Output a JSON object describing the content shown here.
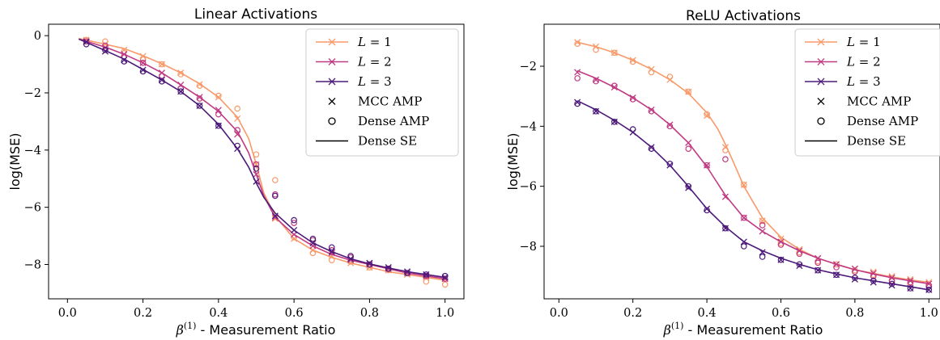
{
  "colors": {
    "L1": "#f89a6a",
    "L2": "#c03a83",
    "L3": "#4c1a7a",
    "legend_frame": "#cccccc",
    "axis": "#000000"
  },
  "chart_data": [
    {
      "type": "line",
      "title": "Linear Activations",
      "xlabel": "β(1) - Measurement Ratio",
      "ylabel": "log(MSE)",
      "xlim": [
        -0.05,
        1.05
      ],
      "ylim": [
        -9.2,
        0.4
      ],
      "xticks": [
        0.0,
        0.2,
        0.4,
        0.6,
        0.8,
        1.0
      ],
      "xtick_labels": [
        "0.0",
        "0.2",
        "0.4",
        "0.6",
        "0.8",
        "1.0"
      ],
      "yticks": [
        0,
        -2,
        -4,
        -6,
        -8
      ],
      "ytick_labels": [
        "0",
        "−2",
        "−4",
        "−6",
        "−8"
      ],
      "legend": {
        "location": "top-right",
        "entries": [
          "L = 1",
          "L = 2",
          "L = 3",
          "MCC AMP",
          "Dense AMP",
          "Dense SE"
        ]
      },
      "series": [
        {
          "name": "L = 1",
          "color_key": "L1",
          "se_curve": {
            "x": [
              0.03,
              0.1,
              0.15,
              0.2,
              0.25,
              0.3,
              0.35,
              0.4,
              0.45,
              0.48,
              0.5,
              0.52,
              0.55,
              0.6,
              0.65,
              0.7,
              0.75,
              0.8,
              0.85,
              0.9,
              0.95,
              1.0
            ],
            "y": [
              -0.1,
              -0.3,
              -0.45,
              -0.7,
              -0.98,
              -1.3,
              -1.68,
              -2.15,
              -2.85,
              -3.6,
              -4.5,
              -5.5,
              -6.3,
              -7.1,
              -7.5,
              -7.75,
              -7.95,
              -8.1,
              -8.25,
              -8.35,
              -8.45,
              -8.55
            ]
          },
          "mcc_amp": {
            "x": [
              0.05,
              0.1,
              0.15,
              0.2,
              0.25,
              0.3,
              0.35,
              0.4,
              0.45,
              0.5,
              0.55,
              0.6,
              0.65,
              0.7,
              0.75,
              0.8,
              0.85,
              0.9,
              0.95,
              1.0
            ],
            "y": [
              -0.15,
              -0.3,
              -0.5,
              -0.72,
              -1.0,
              -1.3,
              -1.7,
              -2.15,
              -2.9,
              -4.5,
              -6.4,
              -7.1,
              -7.5,
              -7.7,
              -7.95,
              -8.1,
              -8.2,
              -8.35,
              -8.45,
              -8.5
            ]
          },
          "dense_amp": {
            "x": [
              0.05,
              0.1,
              0.15,
              0.2,
              0.25,
              0.3,
              0.35,
              0.4,
              0.45,
              0.5,
              0.55,
              0.6,
              0.65,
              0.7,
              0.75,
              0.8,
              0.85,
              0.9,
              0.95,
              1.0
            ],
            "y": [
              -0.15,
              -0.2,
              -0.55,
              -0.8,
              -1.0,
              -1.35,
              -1.75,
              -2.1,
              -2.55,
              -4.15,
              -5.05,
              -7.05,
              -7.6,
              -7.85,
              -7.9,
              -8.1,
              -8.2,
              -8.3,
              -8.6,
              -8.7
            ]
          }
        },
        {
          "name": "L = 2",
          "color_key": "L2",
          "se_curve": {
            "x": [
              0.03,
              0.1,
              0.15,
              0.2,
              0.25,
              0.3,
              0.35,
              0.4,
              0.45,
              0.48,
              0.5,
              0.52,
              0.55,
              0.6,
              0.65,
              0.7,
              0.75,
              0.8,
              0.85,
              0.9,
              0.95,
              1.0
            ],
            "y": [
              -0.12,
              -0.4,
              -0.65,
              -0.95,
              -1.3,
              -1.72,
              -2.15,
              -2.65,
              -3.35,
              -4.1,
              -4.85,
              -5.6,
              -6.35,
              -6.95,
              -7.35,
              -7.65,
              -7.85,
              -8.0,
              -8.15,
              -8.3,
              -8.4,
              -8.5
            ]
          },
          "mcc_amp": {
            "x": [
              0.05,
              0.1,
              0.15,
              0.2,
              0.25,
              0.3,
              0.35,
              0.4,
              0.45,
              0.5,
              0.55,
              0.6,
              0.65,
              0.7,
              0.75,
              0.8,
              0.85,
              0.9,
              0.95,
              1.0
            ],
            "y": [
              -0.2,
              -0.42,
              -0.65,
              -0.95,
              -1.3,
              -1.72,
              -2.15,
              -2.6,
              -3.45,
              -4.85,
              -6.35,
              -6.95,
              -7.35,
              -7.6,
              -7.85,
              -8.0,
              -8.15,
              -8.3,
              -8.4,
              -8.5
            ]
          },
          "dense_amp": {
            "x": [
              0.05,
              0.1,
              0.15,
              0.2,
              0.25,
              0.3,
              0.35,
              0.4,
              0.45,
              0.5,
              0.55,
              0.6,
              0.65,
              0.7,
              0.75,
              0.8,
              0.85,
              0.9,
              0.95,
              1.0
            ],
            "y": [
              -0.2,
              -0.35,
              -0.72,
              -0.95,
              -1.4,
              -1.85,
              -2.2,
              -2.75,
              -3.3,
              -4.5,
              -5.55,
              -6.55,
              -7.15,
              -7.5,
              -7.75,
              -8.0,
              -8.15,
              -8.3,
              -8.4,
              -8.5
            ]
          }
        },
        {
          "name": "L = 3",
          "color_key": "L3",
          "se_curve": {
            "x": [
              0.03,
              0.1,
              0.15,
              0.2,
              0.25,
              0.3,
              0.35,
              0.4,
              0.45,
              0.48,
              0.5,
              0.52,
              0.55,
              0.6,
              0.65,
              0.7,
              0.75,
              0.8,
              0.85,
              0.9,
              0.95,
              1.0
            ],
            "y": [
              -0.12,
              -0.52,
              -0.82,
              -1.18,
              -1.55,
              -1.95,
              -2.45,
              -3.1,
              -3.95,
              -4.6,
              -5.15,
              -5.65,
              -6.2,
              -6.8,
              -7.25,
              -7.55,
              -7.8,
              -7.98,
              -8.12,
              -8.25,
              -8.35,
              -8.45
            ]
          },
          "mcc_amp": {
            "x": [
              0.05,
              0.1,
              0.15,
              0.2,
              0.25,
              0.3,
              0.35,
              0.4,
              0.45,
              0.5,
              0.55,
              0.6,
              0.65,
              0.7,
              0.75,
              0.8,
              0.85,
              0.9,
              0.95,
              1.0
            ],
            "y": [
              -0.22,
              -0.55,
              -0.85,
              -1.2,
              -1.55,
              -1.95,
              -2.45,
              -3.15,
              -3.95,
              -5.1,
              -6.3,
              -6.8,
              -7.25,
              -7.55,
              -7.8,
              -7.95,
              -8.1,
              -8.25,
              -8.35,
              -8.45
            ]
          },
          "dense_amp": {
            "x": [
              0.05,
              0.1,
              0.15,
              0.2,
              0.25,
              0.3,
              0.35,
              0.4,
              0.45,
              0.5,
              0.55,
              0.6,
              0.65,
              0.7,
              0.75,
              0.8,
              0.85,
              0.9,
              0.95,
              1.0
            ],
            "y": [
              -0.3,
              -0.5,
              -0.9,
              -1.25,
              -1.6,
              -1.95,
              -2.45,
              -3.15,
              -3.85,
              -4.65,
              -5.6,
              -6.45,
              -7.1,
              -7.4,
              -7.7,
              -8.0,
              -8.15,
              -8.3,
              -8.35,
              -8.4
            ]
          }
        }
      ]
    },
    {
      "type": "line",
      "title": "ReLU Activations",
      "xlabel": "β(1) - Measurement Ratio",
      "ylabel": "log(MSE)",
      "xlim": [
        -0.04,
        1.03
      ],
      "ylim": [
        -9.75,
        -0.6
      ],
      "xticks": [
        0.0,
        0.2,
        0.4,
        0.6,
        0.8,
        1.0
      ],
      "xtick_labels": [
        "0.0",
        "0.2",
        "0.4",
        "0.6",
        "0.8",
        "1.0"
      ],
      "yticks": [
        -2,
        -4,
        -6,
        -8
      ],
      "ytick_labels": [
        "−2",
        "−4",
        "−6",
        "−8"
      ],
      "legend": {
        "location": "top-right",
        "entries": [
          "L = 1",
          "L = 2",
          "L = 3",
          "MCC AMP",
          "Dense AMP",
          "Dense SE"
        ]
      },
      "series": [
        {
          "name": "L = 1",
          "color_key": "L1",
          "se_curve": {
            "x": [
              0.05,
              0.1,
              0.15,
              0.2,
              0.25,
              0.3,
              0.35,
              0.4,
              0.43,
              0.45,
              0.47,
              0.5,
              0.55,
              0.6,
              0.65,
              0.7,
              0.75,
              0.8,
              0.85,
              0.9,
              0.95,
              1.0
            ],
            "y": [
              -1.2,
              -1.35,
              -1.55,
              -1.8,
              -2.1,
              -2.45,
              -2.9,
              -3.55,
              -4.1,
              -4.6,
              -5.15,
              -6.0,
              -7.05,
              -7.7,
              -8.1,
              -8.4,
              -8.6,
              -8.78,
              -8.9,
              -9.02,
              -9.12,
              -9.2
            ]
          },
          "mcc_amp": {
            "x": [
              0.05,
              0.1,
              0.15,
              0.2,
              0.25,
              0.3,
              0.35,
              0.4,
              0.45,
              0.5,
              0.55,
              0.6,
              0.65,
              0.7,
              0.75,
              0.8,
              0.85,
              0.9,
              0.95,
              1.0
            ],
            "y": [
              -1.2,
              -1.35,
              -1.55,
              -1.8,
              -2.1,
              -2.45,
              -2.85,
              -3.65,
              -4.7,
              -5.95,
              -7.15,
              -7.75,
              -8.1,
              -8.4,
              -8.6,
              -8.75,
              -8.85,
              -9.0,
              -9.1,
              -9.2
            ]
          },
          "dense_amp": {
            "x": [
              0.05,
              0.1,
              0.15,
              0.2,
              0.25,
              0.3,
              0.35,
              0.4,
              0.45,
              0.5,
              0.55,
              0.6,
              0.65,
              0.7,
              0.75,
              0.8,
              0.85,
              0.9,
              0.95,
              1.0
            ],
            "y": [
              -1.25,
              -1.45,
              -1.55,
              -1.85,
              -2.2,
              -2.35,
              -2.85,
              -3.6,
              -4.8,
              -5.95,
              -7.15,
              -7.9,
              -8.2,
              -8.5,
              -8.6,
              -8.8,
              -8.95,
              -9.15,
              -9.25,
              -9.3
            ]
          }
        },
        {
          "name": "L = 2",
          "color_key": "L2",
          "se_curve": {
            "x": [
              0.05,
              0.1,
              0.15,
              0.2,
              0.25,
              0.3,
              0.35,
              0.4,
              0.45,
              0.5,
              0.55,
              0.6,
              0.65,
              0.7,
              0.75,
              0.8,
              0.85,
              0.9,
              0.95,
              1.0
            ],
            "y": [
              -2.15,
              -2.4,
              -2.7,
              -3.05,
              -3.45,
              -3.95,
              -4.55,
              -5.35,
              -6.3,
              -7.05,
              -7.5,
              -7.85,
              -8.15,
              -8.4,
              -8.6,
              -8.78,
              -8.92,
              -9.05,
              -9.15,
              -9.25
            ]
          },
          "mcc_amp": {
            "x": [
              0.05,
              0.1,
              0.15,
              0.2,
              0.25,
              0.3,
              0.35,
              0.4,
              0.45,
              0.5,
              0.55,
              0.6,
              0.65,
              0.7,
              0.75,
              0.8,
              0.85,
              0.9,
              0.95,
              1.0
            ],
            "y": [
              -2.2,
              -2.45,
              -2.7,
              -3.05,
              -3.45,
              -3.95,
              -4.55,
              -5.3,
              -6.35,
              -7.05,
              -7.5,
              -7.85,
              -8.15,
              -8.4,
              -8.6,
              -8.75,
              -8.9,
              -9.05,
              -9.15,
              -9.25
            ]
          },
          "dense_amp": {
            "x": [
              0.05,
              0.1,
              0.15,
              0.2,
              0.25,
              0.3,
              0.35,
              0.4,
              0.45,
              0.5,
              0.55,
              0.6,
              0.65,
              0.7,
              0.75,
              0.8,
              0.85,
              0.9,
              0.95,
              1.0
            ],
            "y": [
              -2.4,
              -2.5,
              -2.65,
              -3.1,
              -3.5,
              -4.0,
              -4.75,
              -5.3,
              -5.1,
              -7.05,
              -7.3,
              -7.95,
              -8.25,
              -8.55,
              -8.7,
              -8.85,
              -9.0,
              -9.15,
              -9.2,
              -9.3
            ]
          }
        },
        {
          "name": "L = 3",
          "color_key": "L3",
          "se_curve": {
            "x": [
              0.05,
              0.1,
              0.15,
              0.2,
              0.25,
              0.3,
              0.35,
              0.4,
              0.45,
              0.5,
              0.55,
              0.6,
              0.65,
              0.7,
              0.75,
              0.8,
              0.85,
              0.9,
              0.95,
              1.0
            ],
            "y": [
              -3.15,
              -3.45,
              -3.8,
              -4.2,
              -4.7,
              -5.3,
              -6.0,
              -6.75,
              -7.35,
              -7.85,
              -8.15,
              -8.4,
              -8.6,
              -8.78,
              -8.92,
              -9.05,
              -9.15,
              -9.25,
              -9.35,
              -9.45
            ]
          },
          "mcc_amp": {
            "x": [
              0.05,
              0.1,
              0.15,
              0.2,
              0.25,
              0.3,
              0.35,
              0.4,
              0.45,
              0.5,
              0.55,
              0.6,
              0.65,
              0.7,
              0.75,
              0.8,
              0.85,
              0.9,
              0.95,
              1.0
            ],
            "y": [
              -3.2,
              -3.5,
              -3.85,
              -4.2,
              -4.7,
              -5.3,
              -6.05,
              -6.75,
              -7.4,
              -7.85,
              -8.2,
              -8.45,
              -8.65,
              -8.8,
              -8.95,
              -9.1,
              -9.2,
              -9.3,
              -9.4,
              -9.45
            ]
          },
          "dense_amp": {
            "x": [
              0.05,
              0.1,
              0.15,
              0.2,
              0.25,
              0.3,
              0.35,
              0.4,
              0.45,
              0.5,
              0.55,
              0.6,
              0.65,
              0.7,
              0.75,
              0.8,
              0.85,
              0.9,
              0.95,
              1.0
            ],
            "y": [
              -3.25,
              -3.5,
              -3.85,
              -4.1,
              -4.75,
              -5.25,
              -6.0,
              -6.8,
              -7.4,
              -8.0,
              -8.35,
              -8.45,
              -8.6,
              -8.8,
              -8.95,
              -9.05,
              -9.15,
              -9.25,
              -9.4,
              -9.45
            ]
          }
        }
      ]
    }
  ]
}
